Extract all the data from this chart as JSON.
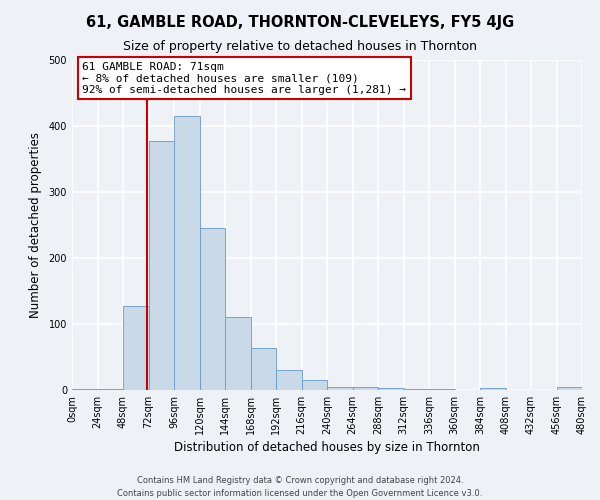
{
  "title": "61, GAMBLE ROAD, THORNTON-CLEVELEYS, FY5 4JG",
  "subtitle": "Size of property relative to detached houses in Thornton",
  "xlabel": "Distribution of detached houses by size in Thornton",
  "ylabel": "Number of detached properties",
  "bin_edges": [
    0,
    24,
    48,
    72,
    96,
    120,
    144,
    168,
    192,
    216,
    240,
    264,
    288,
    312,
    336,
    360,
    384,
    408,
    432,
    456,
    480
  ],
  "bar_heights": [
    2,
    2,
    128,
    378,
    415,
    245,
    110,
    63,
    30,
    15,
    5,
    5,
    3,
    1,
    1,
    0,
    3,
    0,
    0,
    5
  ],
  "bar_color": "#c9d9e8",
  "bar_edge_color": "#6699cc",
  "property_line_x": 71,
  "property_line_color": "#cc0000",
  "annotation_title": "61 GAMBLE ROAD: 71sqm",
  "annotation_line1": "← 8% of detached houses are smaller (109)",
  "annotation_line2": "92% of semi-detached houses are larger (1,281) →",
  "annotation_box_color": "#ffffff",
  "annotation_box_edge_color": "#cc0000",
  "ylim": [
    0,
    500
  ],
  "xlim": [
    0,
    480
  ],
  "tick_labels": [
    "0sqm",
    "24sqm",
    "48sqm",
    "72sqm",
    "96sqm",
    "120sqm",
    "144sqm",
    "168sqm",
    "192sqm",
    "216sqm",
    "240sqm",
    "264sqm",
    "288sqm",
    "312sqm",
    "336sqm",
    "360sqm",
    "384sqm",
    "408sqm",
    "432sqm",
    "456sqm",
    "480sqm"
  ],
  "tick_positions": [
    0,
    24,
    48,
    72,
    96,
    120,
    144,
    168,
    192,
    216,
    240,
    264,
    288,
    312,
    336,
    360,
    384,
    408,
    432,
    456,
    480
  ],
  "footer_line1": "Contains HM Land Registry data © Crown copyright and database right 2024.",
  "footer_line2": "Contains public sector information licensed under the Open Government Licence v3.0.",
  "background_color": "#eef2f7",
  "grid_color": "#ffffff",
  "title_fontsize": 10.5,
  "subtitle_fontsize": 9,
  "axis_label_fontsize": 8.5,
  "tick_fontsize": 7,
  "footer_fontsize": 6,
  "annotation_fontsize": 8
}
